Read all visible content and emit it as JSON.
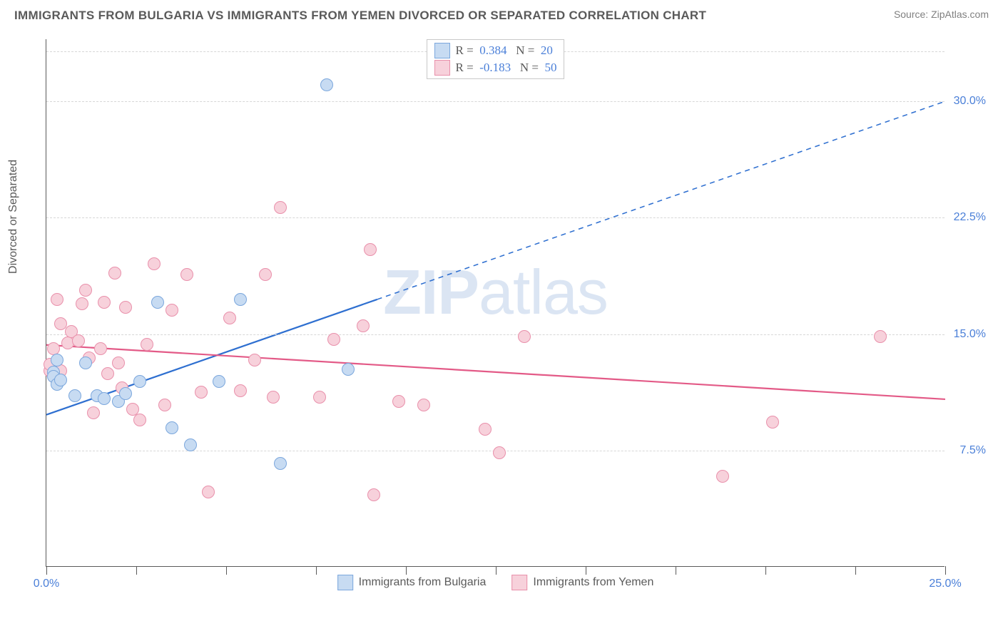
{
  "title": "IMMIGRANTS FROM BULGARIA VS IMMIGRANTS FROM YEMEN DIVORCED OR SEPARATED CORRELATION CHART",
  "source": "Source: ZipAtlas.com",
  "watermark": "ZIPatlas",
  "chart": {
    "type": "scatter",
    "ylabel": "Divorced or Separated",
    "x_range": [
      0,
      25
    ],
    "y_range": [
      0,
      34
    ],
    "y_ticks": [
      7.5,
      15.0,
      22.5,
      30.0
    ],
    "y_tick_labels": [
      "7.5%",
      "15.0%",
      "22.5%",
      "30.0%"
    ],
    "x_ticks": [
      0,
      2.5,
      5,
      7.5,
      10,
      12.5,
      15,
      17.5,
      20,
      22.5,
      25
    ],
    "x_tick_labels_shown": {
      "0": "0.0%",
      "25": "25.0%"
    },
    "grid_color": "#d7d7d7",
    "axis_color": "#5a5a5a",
    "background_color": "#ffffff",
    "marker_radius": 9,
    "series": [
      {
        "name": "Immigrants from Bulgaria",
        "fill": "#c7dbf2",
        "stroke": "#7ba7dd",
        "R": "0.384",
        "N": "20",
        "trend": {
          "y_at_x0": 9.8,
          "y_at_x25": 30.0,
          "solid_until_x": 9.2,
          "color": "#2e6fd0",
          "width": 2.2
        },
        "points": [
          [
            0.2,
            12.5
          ],
          [
            0.2,
            12.2
          ],
          [
            0.3,
            13.3
          ],
          [
            0.3,
            11.7
          ],
          [
            0.4,
            12.0
          ],
          [
            0.8,
            11.0
          ],
          [
            1.1,
            13.1
          ],
          [
            1.4,
            11.0
          ],
          [
            1.6,
            10.8
          ],
          [
            2.0,
            10.6
          ],
          [
            2.2,
            11.1
          ],
          [
            2.6,
            11.9
          ],
          [
            3.1,
            17.0
          ],
          [
            3.5,
            8.9
          ],
          [
            4.0,
            7.8
          ],
          [
            4.8,
            11.9
          ],
          [
            5.4,
            17.2
          ],
          [
            6.5,
            6.6
          ],
          [
            7.8,
            31.0
          ],
          [
            8.4,
            12.7
          ]
        ]
      },
      {
        "name": "Immigrants from Yemen",
        "fill": "#f7d1db",
        "stroke": "#e990ab",
        "R": "-0.183",
        "N": "50",
        "trend": {
          "y_at_x0": 14.3,
          "y_at_x25": 10.8,
          "solid_until_x": 25,
          "color": "#e35a87",
          "width": 2.2
        },
        "points": [
          [
            0.1,
            12.6
          ],
          [
            0.1,
            13.0
          ],
          [
            0.2,
            12.2
          ],
          [
            0.2,
            14.0
          ],
          [
            0.3,
            12.4
          ],
          [
            0.3,
            17.2
          ],
          [
            0.4,
            15.6
          ],
          [
            0.4,
            12.6
          ],
          [
            0.6,
            14.4
          ],
          [
            0.7,
            15.1
          ],
          [
            0.9,
            14.5
          ],
          [
            1.0,
            16.9
          ],
          [
            1.1,
            17.8
          ],
          [
            1.2,
            13.4
          ],
          [
            1.3,
            9.9
          ],
          [
            1.5,
            14.0
          ],
          [
            1.6,
            17.0
          ],
          [
            1.7,
            12.4
          ],
          [
            1.9,
            18.9
          ],
          [
            2.0,
            13.1
          ],
          [
            2.1,
            11.5
          ],
          [
            2.2,
            16.7
          ],
          [
            2.4,
            10.1
          ],
          [
            2.6,
            9.4
          ],
          [
            2.8,
            14.3
          ],
          [
            3.0,
            19.5
          ],
          [
            3.3,
            10.4
          ],
          [
            3.5,
            16.5
          ],
          [
            3.9,
            18.8
          ],
          [
            4.3,
            11.2
          ],
          [
            4.5,
            4.8
          ],
          [
            5.1,
            16.0
          ],
          [
            5.4,
            11.3
          ],
          [
            5.8,
            13.3
          ],
          [
            6.1,
            18.8
          ],
          [
            6.3,
            10.9
          ],
          [
            6.5,
            23.1
          ],
          [
            7.6,
            10.9
          ],
          [
            8.0,
            14.6
          ],
          [
            8.8,
            15.5
          ],
          [
            9.0,
            20.4
          ],
          [
            9.1,
            4.6
          ],
          [
            9.8,
            10.6
          ],
          [
            12.2,
            8.8
          ],
          [
            12.6,
            7.3
          ],
          [
            13.3,
            14.8
          ],
          [
            18.8,
            5.8
          ],
          [
            20.2,
            9.3
          ],
          [
            23.2,
            14.8
          ],
          [
            10.5,
            10.4
          ]
        ]
      }
    ],
    "legend_top_stats": [
      {
        "swatch_fill": "#c7dbf2",
        "swatch_stroke": "#7ba7dd",
        "R": "0.384",
        "N": "20"
      },
      {
        "swatch_fill": "#f7d1db",
        "swatch_stroke": "#e990ab",
        "R": "-0.183",
        "N": "50"
      }
    ],
    "legend_bottom": [
      {
        "swatch_fill": "#c7dbf2",
        "swatch_stroke": "#7ba7dd",
        "label": "Immigrants from Bulgaria"
      },
      {
        "swatch_fill": "#f7d1db",
        "swatch_stroke": "#e990ab",
        "label": "Immigrants from Yemen"
      }
    ]
  }
}
